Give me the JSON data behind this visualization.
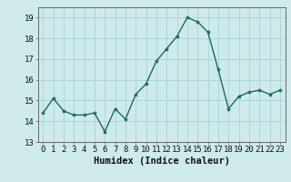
{
  "x": [
    0,
    1,
    2,
    3,
    4,
    5,
    6,
    7,
    8,
    9,
    10,
    11,
    12,
    13,
    14,
    15,
    16,
    17,
    18,
    19,
    20,
    21,
    22,
    23
  ],
  "y": [
    14.4,
    15.1,
    14.5,
    14.3,
    14.3,
    14.4,
    13.5,
    14.6,
    14.1,
    15.3,
    15.8,
    16.9,
    17.5,
    18.1,
    19.0,
    18.8,
    18.3,
    16.5,
    14.6,
    15.2,
    15.4,
    15.5,
    15.3,
    15.5
  ],
  "line_color": "#1a6b5a",
  "marker": "*",
  "marker_size": 3,
  "bg_color": "#ceeaea",
  "grid_color": "#aad4d4",
  "xlabel": "Humidex (Indice chaleur)",
  "ylim": [
    13,
    19.5
  ],
  "xlim": [
    -0.5,
    23.5
  ],
  "yticks": [
    13,
    14,
    15,
    16,
    17,
    18,
    19
  ],
  "xticks": [
    0,
    1,
    2,
    3,
    4,
    5,
    6,
    7,
    8,
    9,
    10,
    11,
    12,
    13,
    14,
    15,
    16,
    17,
    18,
    19,
    20,
    21,
    22,
    23
  ],
  "tick_fontsize": 6.5,
  "xlabel_fontsize": 7.5,
  "line_width": 1.0
}
